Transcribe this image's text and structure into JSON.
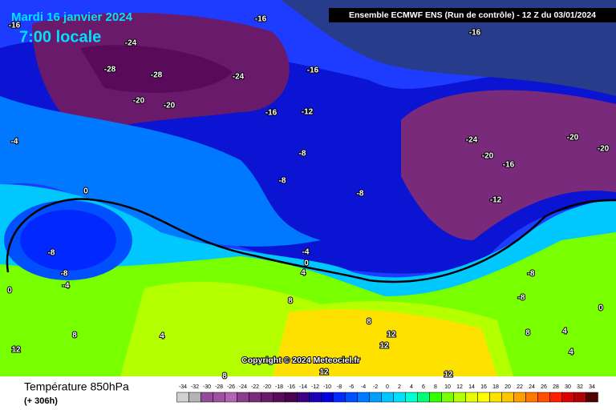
{
  "header": {
    "date": "Mardi 16 janvier 2024",
    "time": "7:00 locale",
    "run": "Ensemble ECMWF ENS  (Run de contrôle)  -  12 Z du 03/01/2024"
  },
  "copyright": "Copyright © 2024 Meteociel.fr",
  "footer": {
    "title": "Température 850hPa",
    "lead": "(+ 306h)"
  },
  "contour_labels": [
    -16,
    -16,
    -24,
    -28,
    -28,
    -24,
    -16,
    -20,
    -20,
    -16,
    -12,
    -16,
    -4,
    -8,
    -8,
    -8,
    -24,
    -20,
    -16,
    -20,
    -20,
    -12,
    0,
    -8,
    -8,
    -4,
    0,
    -4,
    0,
    4,
    8,
    -8,
    0,
    8,
    4,
    12,
    8,
    12,
    12,
    12,
    12,
    8,
    -8,
    8,
    4,
    4
  ],
  "legend": {
    "ticks": [
      -34,
      -32,
      -30,
      -28,
      -26,
      -24,
      -22,
      -20,
      -18,
      -16,
      -14,
      -12,
      -10,
      -8,
      -6,
      -4,
      -2,
      0,
      2,
      4,
      6,
      8,
      10,
      12,
      14,
      16,
      18,
      20,
      22,
      24,
      26,
      28,
      30,
      32,
      34
    ],
    "colors": [
      "#d0d0d0",
      "#b4b4b4",
      "#964b96",
      "#a050a0",
      "#b464b4",
      "#8c3c8c",
      "#7a2a7a",
      "#6a1a6a",
      "#5a0a5a",
      "#4b0050",
      "#3c0082",
      "#1e00b4",
      "#0000dc",
      "#0028ff",
      "#0050ff",
      "#0078ff",
      "#00a0ff",
      "#00c8ff",
      "#00e1ff",
      "#00ffd2",
      "#00ff78",
      "#32ff00",
      "#78ff00",
      "#b4ff00",
      "#e6ff00",
      "#ffff00",
      "#ffe100",
      "#ffc800",
      "#ffa000",
      "#ff7800",
      "#ff5000",
      "#ff1e00",
      "#dc0000",
      "#b40000",
      "#500000"
    ]
  }
}
